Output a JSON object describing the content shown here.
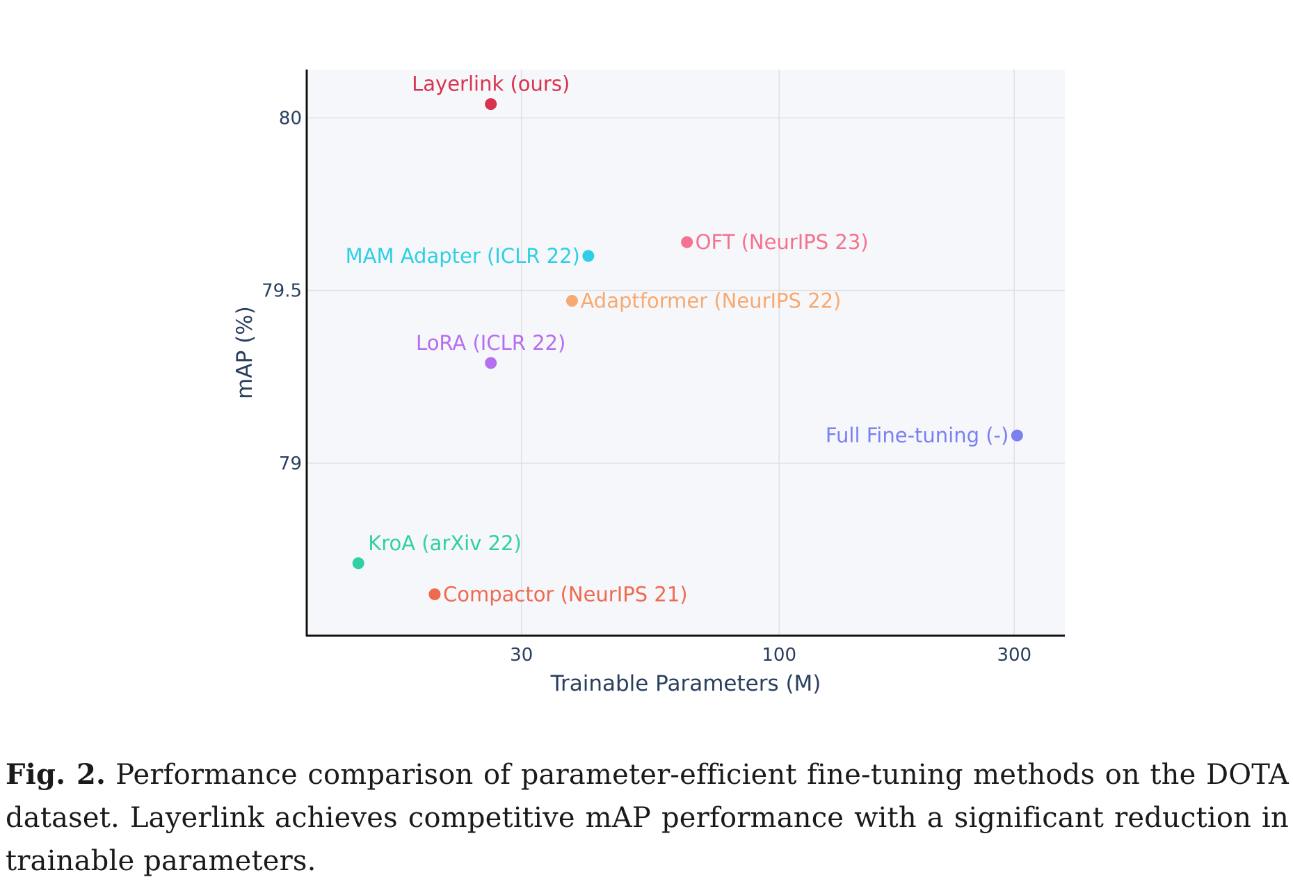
{
  "chart_data": {
    "type": "scatter",
    "xlabel": "Trainable Parameters (M)",
    "ylabel": "mAP (%)",
    "x_scale": "log",
    "xlim": [
      11,
      380
    ],
    "ylim": [
      78.5,
      80.14
    ],
    "x_ticks": [
      {
        "value": 30,
        "label": "30"
      },
      {
        "value": 100,
        "label": "100"
      },
      {
        "value": 300,
        "label": "300"
      }
    ],
    "y_ticks": [
      {
        "value": 79,
        "label": "79"
      },
      {
        "value": 79.5,
        "label": "79.5"
      },
      {
        "value": 80,
        "label": "80"
      }
    ],
    "grid": true,
    "background": "#f6f7fa",
    "gridline_color": "#dde1e6",
    "axis_line_color": "#111111",
    "points": [
      {
        "label": "Layerlink (ours)",
        "x": 26,
        "y": 80.04,
        "color": "#d8334f",
        "label_position": "top"
      },
      {
        "label": "MAM Adapter (ICLR 22)",
        "x": 41,
        "y": 79.6,
        "color": "#2ecfe6",
        "label_position": "left"
      },
      {
        "label": "OFT (NeurIPS 23)",
        "x": 65,
        "y": 79.64,
        "color": "#f4728f",
        "label_position": "right"
      },
      {
        "label": "Adaptformer (NeurIPS 22)",
        "x": 38,
        "y": 79.47,
        "color": "#f8a96f",
        "label_position": "right"
      },
      {
        "label": "LoRA (ICLR 22)",
        "x": 26,
        "y": 79.29,
        "color": "#b56ef0",
        "label_position": "top"
      },
      {
        "label": "Full Fine-tuning (-)",
        "x": 304,
        "y": 79.08,
        "color": "#7a80f0",
        "label_position": "left"
      },
      {
        "label": "KroA (arXiv 22)",
        "x": 14,
        "y": 78.71,
        "color": "#30d0a4",
        "label_position": "top-right"
      },
      {
        "label": "Compactor (NeurIPS 21)",
        "x": 20,
        "y": 78.62,
        "color": "#ef6a50",
        "label_position": "right"
      }
    ]
  },
  "caption": {
    "label": "Fig. 2.",
    "text": "Performance comparison of parameter-efficient fine-tuning methods on the DOTA dataset. Layerlink achieves competitive mAP performance with a significant reduction in trainable parameters."
  }
}
